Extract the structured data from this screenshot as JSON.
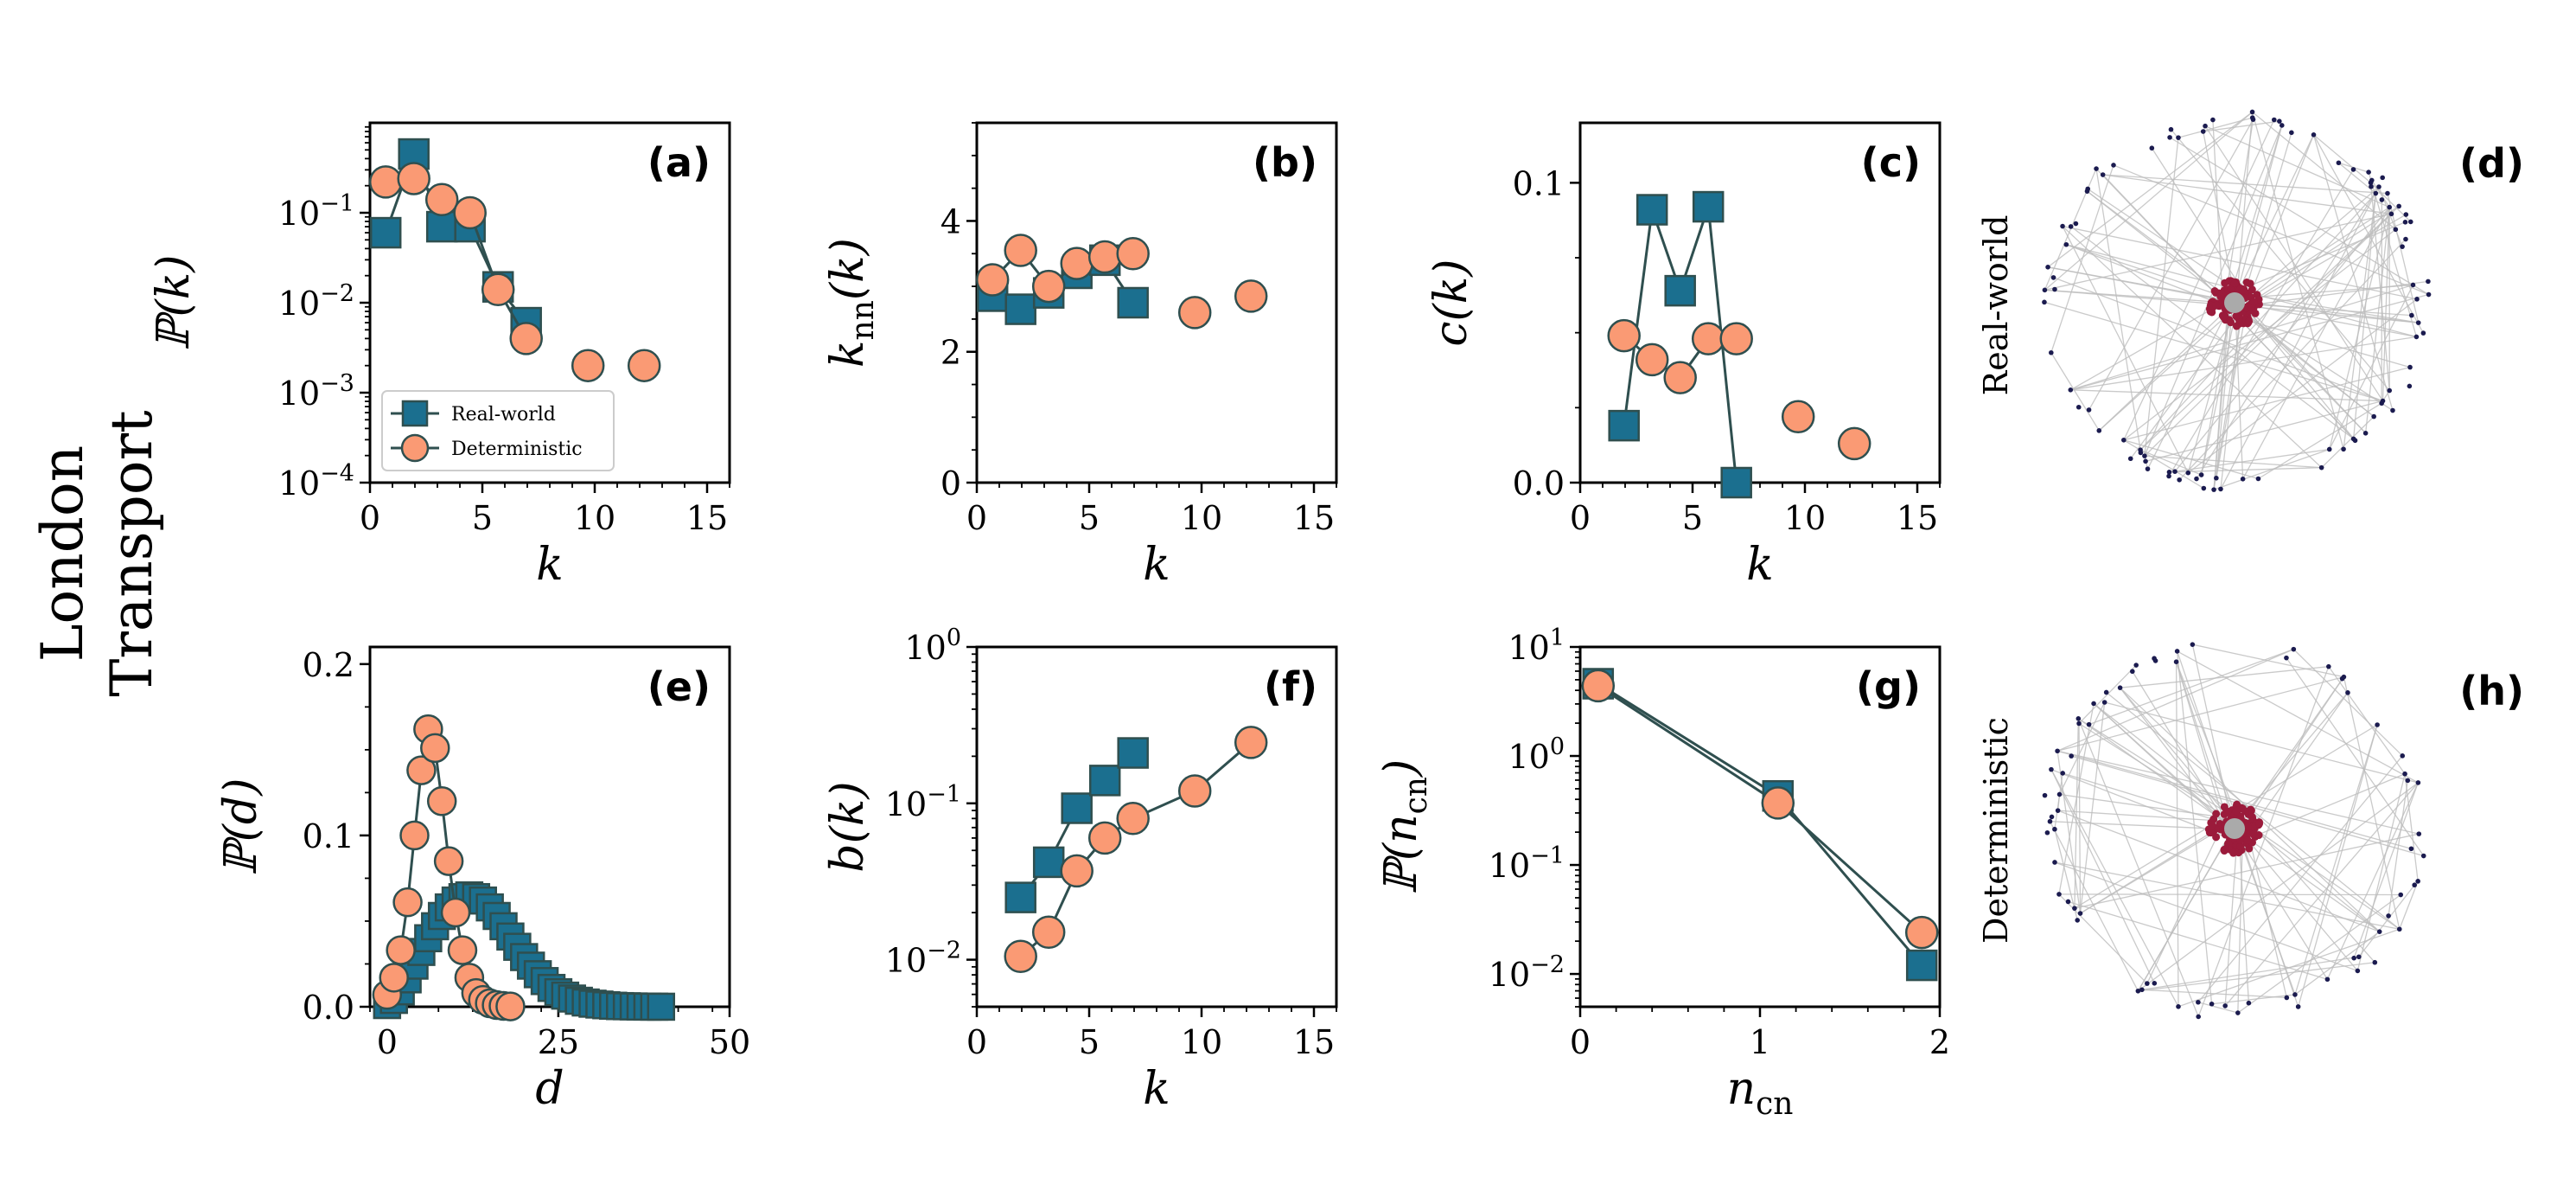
{
  "figure": {
    "row_title": [
      "London",
      "Transport"
    ],
    "legend": {
      "series": [
        "Real-world",
        "Deterministic"
      ]
    },
    "colors": {
      "real": "#1b6f8f",
      "det": "#fa9a74",
      "edge": "#2f4f4f",
      "node_outer": "#1b1b4f",
      "node_core": "#9b1b3b",
      "node_center": "#aaaaaa",
      "net_edge": "#bdbdbd"
    }
  },
  "chart_data": [
    {
      "id": "a",
      "label": "(a)",
      "type": "line",
      "xscale": "linear",
      "yscale": "log",
      "xlim": [
        0,
        16
      ],
      "ylim": [
        0.0001,
        1.0
      ],
      "xticks": [
        0,
        5,
        10,
        15
      ],
      "yticks": [
        0.0001,
        0.001,
        0.01,
        0.1
      ],
      "ytick_labels": [
        {
          "base": "10",
          "exp": "−4"
        },
        {
          "base": "10",
          "exp": "−3"
        },
        {
          "base": "10",
          "exp": "−2"
        },
        {
          "base": "10",
          "exp": "−1"
        }
      ],
      "xlabel": "k",
      "ylabel": "ℙ(k)",
      "legend": "lower-left",
      "series": [
        {
          "name": "Real-world",
          "x": [
            0.7,
            1.95,
            3.2,
            4.45,
            5.7,
            6.95
          ],
          "y": [
            0.06,
            0.45,
            0.07,
            0.07,
            0.015,
            0.006
          ]
        },
        {
          "name": "Deterministic",
          "x": [
            0.7,
            1.95,
            3.2,
            4.45,
            5.7,
            6.95,
            9.7,
            12.2
          ],
          "y": [
            0.22,
            0.24,
            0.14,
            0.1,
            0.014,
            0.004,
            0.002,
            0.002
          ]
        }
      ]
    },
    {
      "id": "b",
      "label": "(b)",
      "type": "line",
      "xscale": "linear",
      "yscale": "linear",
      "xlim": [
        0,
        16
      ],
      "ylim": [
        0,
        5.5
      ],
      "xticks": [
        0,
        5,
        10,
        15
      ],
      "yticks": [
        0,
        2,
        4
      ],
      "ytick_labels": [
        "0",
        "2",
        "4"
      ],
      "xlabel": "k",
      "ylabel": "k_nn(k)",
      "series": [
        {
          "name": "Real-world",
          "x": [
            0.7,
            1.95,
            3.2,
            4.45,
            5.7,
            6.95
          ],
          "y": [
            2.85,
            2.65,
            2.9,
            3.2,
            3.4,
            2.75
          ]
        },
        {
          "name": "Deterministic",
          "x": [
            0.7,
            1.95,
            3.2,
            4.45,
            5.7,
            6.95,
            9.7,
            12.2
          ],
          "y": [
            3.1,
            3.55,
            3.0,
            3.35,
            3.45,
            3.5,
            2.6,
            2.85
          ]
        }
      ]
    },
    {
      "id": "c",
      "label": "(c)",
      "type": "line",
      "xscale": "linear",
      "yscale": "linear",
      "xlim": [
        0,
        16
      ],
      "ylim": [
        0,
        0.12
      ],
      "xticks": [
        0,
        5,
        10,
        15
      ],
      "yticks": [
        0,
        0.1
      ],
      "ytick_labels": [
        "0.0",
        "0.1"
      ],
      "xlabel": "k",
      "ylabel": "c(k)",
      "series": [
        {
          "name": "Real-world",
          "x": [
            1.95,
            3.2,
            4.45,
            5.7,
            6.95
          ],
          "y": [
            0.019,
            0.091,
            0.064,
            0.092,
            0.0
          ]
        },
        {
          "name": "Deterministic",
          "x": [
            1.95,
            3.2,
            4.45,
            5.7,
            6.95,
            9.7,
            12.2
          ],
          "y": [
            0.049,
            0.041,
            0.035,
            0.048,
            0.048,
            0.022,
            0.013
          ]
        }
      ]
    },
    {
      "id": "e",
      "label": "(e)",
      "type": "line",
      "xscale": "linear",
      "yscale": "linear",
      "xlim": [
        -2.5,
        50
      ],
      "ylim": [
        0,
        0.21
      ],
      "xticks": [
        0,
        25,
        50
      ],
      "yticks": [
        0,
        0.1,
        0.2
      ],
      "ytick_labels": [
        "0.0",
        "0.1",
        "0.2"
      ],
      "xlabel": "d",
      "ylabel": "ℙ(d)",
      "series": [
        {
          "name": "Real-world",
          "x": [
            0,
            1,
            2,
            3,
            4,
            5,
            6,
            7,
            8,
            9,
            10,
            11,
            12,
            13,
            14,
            15,
            16,
            17,
            18,
            19,
            20,
            21,
            22,
            23,
            24,
            25,
            26,
            27,
            28,
            29,
            30,
            31,
            32,
            33,
            34,
            35,
            36,
            37,
            38,
            39,
            40
          ],
          "y": [
            0.001,
            0.004,
            0.009,
            0.016,
            0.024,
            0.032,
            0.04,
            0.047,
            0.053,
            0.058,
            0.062,
            0.064,
            0.065,
            0.064,
            0.062,
            0.058,
            0.053,
            0.047,
            0.041,
            0.035,
            0.029,
            0.024,
            0.019,
            0.015,
            0.011,
            0.0085,
            0.0065,
            0.0048,
            0.0035,
            0.0025,
            0.0018,
            0.0013,
            0.0009,
            0.0006,
            0.0004,
            0.0003,
            0.0002,
            0.0001,
            8e-05,
            5e-05,
            3e-05
          ]
        },
        {
          "name": "Deterministic",
          "x": [
            0,
            1,
            2,
            3,
            4,
            5,
            6,
            7,
            8,
            9,
            10,
            11,
            12,
            13,
            14,
            15,
            16,
            17,
            18
          ],
          "y": [
            0.007,
            0.017,
            0.033,
            0.061,
            0.1,
            0.138,
            0.162,
            0.151,
            0.12,
            0.085,
            0.055,
            0.033,
            0.017,
            0.008,
            0.004,
            0.002,
            0.001,
            0.0005,
            0.0002
          ]
        }
      ]
    },
    {
      "id": "f",
      "label": "(f)",
      "type": "line",
      "xscale": "linear",
      "yscale": "log",
      "xlim": [
        0,
        16
      ],
      "ylim": [
        0.005,
        1.0
      ],
      "xticks": [
        0,
        5,
        10,
        15
      ],
      "yticks": [
        0.01,
        0.1,
        1.0
      ],
      "ytick_labels": [
        {
          "base": "10",
          "exp": "−2"
        },
        {
          "base": "10",
          "exp": "−1"
        },
        {
          "base": "10",
          "exp": "0"
        }
      ],
      "xlabel": "k",
      "ylabel": "b(k)",
      "series": [
        {
          "name": "Real-world",
          "x": [
            1.95,
            3.2,
            4.45,
            5.7,
            6.95
          ],
          "y": [
            0.025,
            0.042,
            0.093,
            0.14,
            0.21
          ]
        },
        {
          "name": "Deterministic",
          "x": [
            1.95,
            3.2,
            4.45,
            5.7,
            6.95,
            9.7,
            12.2
          ],
          "y": [
            0.0105,
            0.015,
            0.037,
            0.06,
            0.08,
            0.12,
            0.245
          ]
        }
      ]
    },
    {
      "id": "g",
      "label": "(g)",
      "type": "line",
      "xscale": "linear",
      "yscale": "log",
      "xlim": [
        0,
        2
      ],
      "ylim": [
        0.005,
        10.0
      ],
      "xticks": [
        0,
        1,
        2
      ],
      "yticks": [
        0.01,
        0.1,
        1.0,
        10.0
      ],
      "ytick_labels": [
        {
          "base": "10",
          "exp": "−2"
        },
        {
          "base": "10",
          "exp": "−1"
        },
        {
          "base": "10",
          "exp": "0"
        },
        {
          "base": "10",
          "exp": "1"
        }
      ],
      "xlabel": "n_cn",
      "ylabel": "ℙ(n_cn)",
      "series": [
        {
          "name": "Real-world",
          "x": [
            0.1,
            1.1,
            1.9
          ],
          "y": [
            4.6,
            0.43,
            0.012
          ]
        },
        {
          "name": "Deterministic",
          "x": [
            0.1,
            1.1,
            1.9
          ],
          "y": [
            4.4,
            0.37,
            0.024
          ]
        }
      ]
    }
  ],
  "networks": [
    {
      "id": "d",
      "label": "(d)",
      "side_label": "Real-world"
    },
    {
      "id": "h",
      "label": "(h)",
      "side_label": "Deterministic"
    }
  ]
}
